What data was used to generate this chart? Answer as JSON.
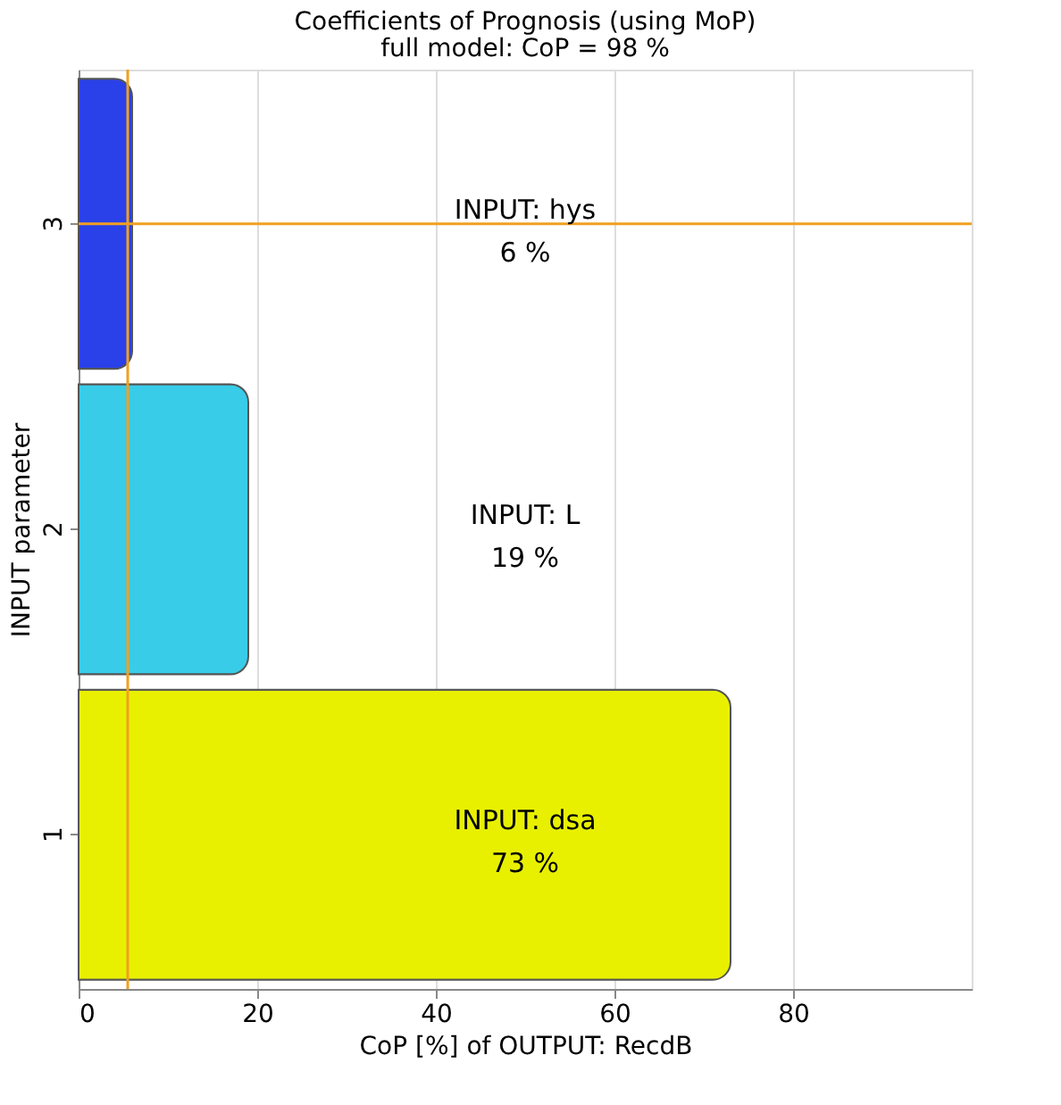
{
  "chart_data": {
    "type": "bar",
    "orientation": "horizontal",
    "title": "Coefficients of Prognosis (using MoP)",
    "subtitle": "full model: CoP =    98 %",
    "xlabel": "CoP [%] of OUTPUT: RecdB",
    "ylabel": "INPUT parameter",
    "categories": [
      "3",
      "2",
      "1"
    ],
    "values": [
      6,
      19,
      73
    ],
    "colors": [
      "#2a40e8",
      "#38cce8",
      "#e8f000"
    ],
    "annotations": [
      "INPUT: hys\n6 %",
      "INPUT: L\n19 %",
      "INPUT: dsa\n73 %"
    ],
    "xlim": [
      0,
      100
    ],
    "xticks": [
      0,
      20,
      40,
      60,
      80
    ],
    "grid": "x",
    "ref_lines": [
      {
        "axis": "x",
        "value": 5.5,
        "color": "#f0a020"
      },
      {
        "axis": "y",
        "value": "3",
        "color": "#f0a020"
      }
    ]
  }
}
